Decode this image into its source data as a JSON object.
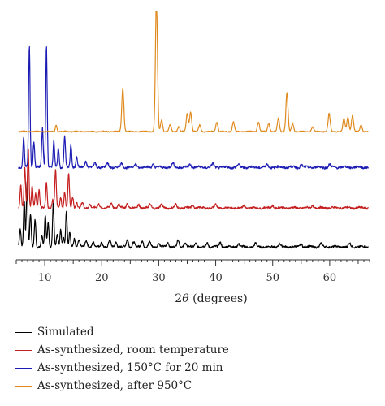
{
  "chart_data": {
    "type": "line",
    "xlabel_prefix": "2",
    "xlabel_symbol": "θ",
    "xlabel_suffix": " (degrees)",
    "xlim": [
      5,
      67
    ],
    "x_ticks": [
      10,
      20,
      30,
      40,
      50,
      60
    ],
    "x_tick_labels": [
      "10",
      "20",
      "30",
      "40",
      "50",
      "60"
    ],
    "legend_position": "bottom",
    "series": [
      {
        "name": "Simulated",
        "color": "#000000",
        "offset": 0,
        "baseline_noise": 0.06,
        "peaks": [
          [
            5.7,
            0.55
          ],
          [
            6.4,
            1.45
          ],
          [
            6.9,
            2.0
          ],
          [
            7.5,
            1.0
          ],
          [
            8.3,
            0.85
          ],
          [
            9.5,
            0.35
          ],
          [
            10.1,
            0.95
          ],
          [
            10.6,
            0.75
          ],
          [
            11.5,
            1.35
          ],
          [
            12.2,
            0.4
          ],
          [
            12.8,
            0.55
          ],
          [
            13.3,
            0.3
          ],
          [
            13.8,
            1.1
          ],
          [
            14.4,
            0.45
          ],
          [
            15.2,
            0.25
          ],
          [
            16.0,
            0.2
          ],
          [
            17.3,
            0.18
          ],
          [
            18.5,
            0.15
          ],
          [
            20.0,
            0.14
          ],
          [
            21.4,
            0.2
          ],
          [
            22.5,
            0.15
          ],
          [
            24.5,
            0.22
          ],
          [
            25.6,
            0.15
          ],
          [
            27.1,
            0.2
          ],
          [
            28.4,
            0.15
          ],
          [
            30.0,
            0.12
          ],
          [
            31.6,
            0.14
          ],
          [
            33.4,
            0.2
          ],
          [
            34.6,
            0.14
          ],
          [
            36.5,
            0.12
          ],
          [
            38.5,
            0.12
          ],
          [
            40.8,
            0.14
          ],
          [
            44.0,
            0.1
          ],
          [
            47.0,
            0.1
          ],
          [
            51.2,
            0.1
          ],
          [
            55.0,
            0.1
          ],
          [
            58.5,
            0.1
          ],
          [
            63.5,
            0.1
          ]
        ]
      },
      {
        "name": "As-synthesized, room temperature",
        "color": "#c41e1e",
        "offset": 1.2,
        "baseline_noise": 0.06,
        "peaks": [
          [
            5.8,
            0.7
          ],
          [
            6.5,
            1.25
          ],
          [
            7.1,
            1.85
          ],
          [
            7.8,
            0.7
          ],
          [
            8.4,
            0.45
          ],
          [
            9.0,
            0.55
          ],
          [
            10.3,
            0.8
          ],
          [
            11.4,
            0.25
          ],
          [
            11.9,
            1.2
          ],
          [
            12.8,
            0.35
          ],
          [
            13.5,
            0.5
          ],
          [
            14.2,
            1.05
          ],
          [
            14.9,
            0.35
          ],
          [
            15.6,
            0.2
          ],
          [
            16.6,
            0.15
          ],
          [
            17.9,
            0.12
          ],
          [
            19.5,
            0.12
          ],
          [
            21.7,
            0.15
          ],
          [
            23.0,
            0.12
          ],
          [
            24.5,
            0.14
          ],
          [
            26.5,
            0.1
          ],
          [
            28.5,
            0.1
          ],
          [
            30.5,
            0.1
          ],
          [
            33.0,
            0.1
          ],
          [
            36.0,
            0.1
          ],
          [
            40.0,
            0.1
          ],
          [
            45.0,
            0.08
          ],
          [
            50.0,
            0.08
          ],
          [
            57.0,
            0.08
          ]
        ]
      },
      {
        "name": "As-synthesized, 150°C for 20 min",
        "color": "#1c1cb4",
        "offset": 2.45,
        "baseline_noise": 0.07,
        "peaks": [
          [
            6.3,
            0.9
          ],
          [
            7.3,
            3.75
          ],
          [
            8.1,
            0.8
          ],
          [
            9.6,
            1.2
          ],
          [
            10.3,
            3.75
          ],
          [
            11.6,
            0.8
          ],
          [
            12.4,
            0.6
          ],
          [
            13.5,
            0.95
          ],
          [
            14.6,
            0.7
          ],
          [
            15.6,
            0.35
          ],
          [
            17.2,
            0.18
          ],
          [
            18.8,
            0.14
          ],
          [
            21.0,
            0.12
          ],
          [
            23.5,
            0.12
          ],
          [
            26.0,
            0.1
          ],
          [
            29.0,
            0.1
          ],
          [
            32.5,
            0.12
          ],
          [
            35.5,
            0.1
          ],
          [
            39.5,
            0.1
          ],
          [
            44.0,
            0.08
          ],
          [
            49.0,
            0.08
          ],
          [
            55.0,
            0.08
          ],
          [
            60.0,
            0.08
          ]
        ]
      },
      {
        "name": "As-synthesized, after 950°C",
        "color": "#e08a1e",
        "offset": 3.55,
        "baseline_noise": 0.03,
        "peaks": [
          [
            12.0,
            0.2
          ],
          [
            23.7,
            1.35
          ],
          [
            29.6,
            4.05
          ],
          [
            30.5,
            0.35
          ],
          [
            32.0,
            0.2
          ],
          [
            33.5,
            0.15
          ],
          [
            35.0,
            0.55
          ],
          [
            35.6,
            0.6
          ],
          [
            37.2,
            0.2
          ],
          [
            40.2,
            0.3
          ],
          [
            43.1,
            0.3
          ],
          [
            47.5,
            0.3
          ],
          [
            49.3,
            0.25
          ],
          [
            51.0,
            0.4
          ],
          [
            52.5,
            1.2
          ],
          [
            53.5,
            0.25
          ],
          [
            57.0,
            0.15
          ],
          [
            59.9,
            0.55
          ],
          [
            62.5,
            0.4
          ],
          [
            63.2,
            0.45
          ],
          [
            64.0,
            0.5
          ],
          [
            65.5,
            0.2
          ]
        ]
      }
    ]
  }
}
